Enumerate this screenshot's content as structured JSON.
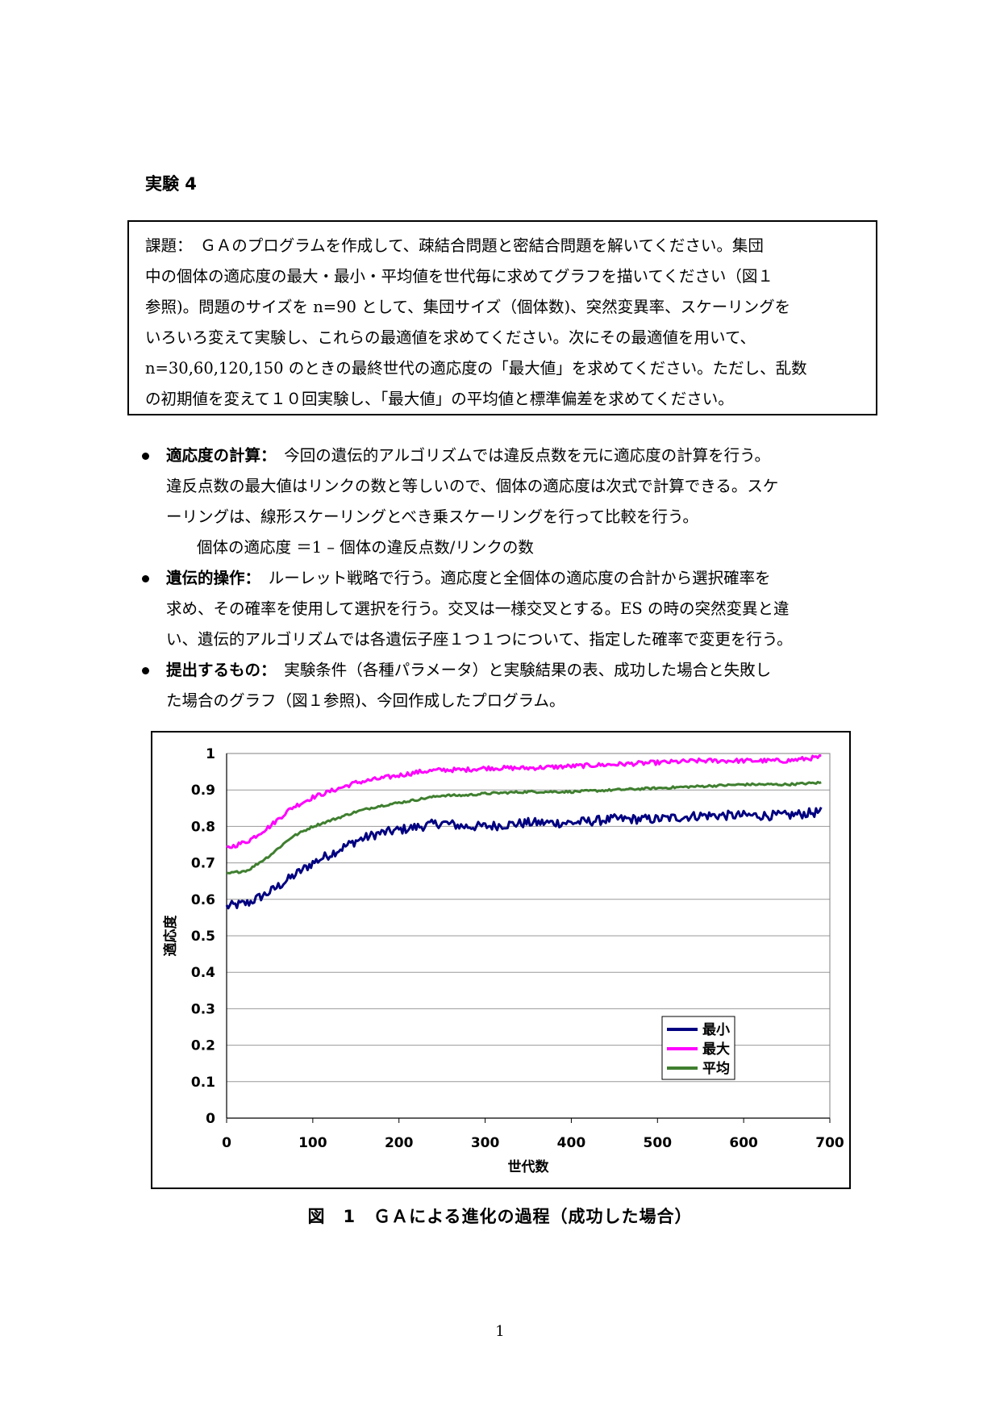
{
  "heading": "実験 4",
  "task_box": {
    "lines": [
      "課題：　ＧＡのプログラムを作成して、疎結合問題と密結合問題を解いてください。集団",
      "中の個体の適応度の最大・最小・平均値を世代毎に求めてグラフを描いてください（図１",
      "参照)。問題のサイズを n=90 として、集団サイズ（個体数)、突然変異率、スケーリングを",
      "いろいろ変えて実験し、これらの最適値を求めてください。次にその最適値を用いて、",
      "n=30,60,120,150 のときの最終世代の適応度の「最大値」を求めてください。ただし、乱数",
      "の初期値を変えて１０回実験し、「最大値」の平均値と標準偏差を求めてください。"
    ]
  },
  "bullets": [
    {
      "term": "適応度の計算：",
      "first": "　今回の遺伝的アルゴリズムでは違反点数を元に適応度の計算を行う。",
      "rest": [
        "違反点数の最大値はリンクの数と等しいので、個体の適応度は次式で計算できる。スケ",
        "ーリングは、線形スケーリングとべき乗スケーリングを行って比較を行う。"
      ],
      "formula": "個体の適応度 ＝1 – 個体の違反点数/リンクの数"
    },
    {
      "term": "遺伝的操作：",
      "first": "　ルーレット戦略で行う。適応度と全個体の適応度の合計から選択確率を",
      "rest": [
        "求め、その確率を使用して選択を行う。交叉は一様交叉とする。ES の時の突然変異と違",
        "い、遺伝的アルゴリズムでは各遺伝子座１つ１つについて、指定した確率で変更を行う。"
      ]
    },
    {
      "term": "提出するもの：",
      "first": "　実験条件（各種パラメータ）と実験結果の表、成功した場合と失敗し",
      "rest": [
        "た場合のグラフ（図１参照)、今回作成したプログラム。"
      ]
    }
  ],
  "chart_data": {
    "type": "line",
    "title": "",
    "xlabel": "世代数",
    "ylabel": "適応度",
    "xlim": [
      0,
      700
    ],
    "ylim": [
      0,
      1
    ],
    "x_ticks": [
      "0",
      "100",
      "200",
      "300",
      "400",
      "500",
      "600",
      "700"
    ],
    "y_ticks": [
      "0",
      "0.1",
      "0.2",
      "0.3",
      "0.4",
      "0.5",
      "0.6",
      "0.7",
      "0.8",
      "0.9",
      "1"
    ],
    "grid": "horizontal",
    "legend_position": "bottom-right",
    "x": [
      0,
      25,
      50,
      75,
      100,
      125,
      150,
      175,
      200,
      225,
      250,
      275,
      300,
      350,
      400,
      450,
      500,
      550,
      600,
      650,
      690
    ],
    "series": [
      {
        "name": "最小",
        "color": "#000080",
        "values": [
          0.58,
          0.59,
          0.62,
          0.66,
          0.7,
          0.73,
          0.76,
          0.78,
          0.79,
          0.8,
          0.81,
          0.8,
          0.8,
          0.81,
          0.81,
          0.82,
          0.82,
          0.83,
          0.83,
          0.83,
          0.84
        ]
      },
      {
        "name": "最大",
        "color": "#ff00ff",
        "values": [
          0.74,
          0.76,
          0.8,
          0.85,
          0.88,
          0.9,
          0.92,
          0.93,
          0.94,
          0.95,
          0.955,
          0.955,
          0.96,
          0.96,
          0.965,
          0.97,
          0.975,
          0.98,
          0.98,
          0.98,
          0.99
        ]
      },
      {
        "name": "平均",
        "color": "#3f7f2f",
        "values": [
          0.67,
          0.68,
          0.72,
          0.77,
          0.8,
          0.82,
          0.84,
          0.855,
          0.865,
          0.875,
          0.885,
          0.885,
          0.89,
          0.895,
          0.895,
          0.9,
          0.905,
          0.91,
          0.915,
          0.915,
          0.92
        ]
      }
    ]
  },
  "caption": "図　1　ＧＡによる進化の過程（成功した場合）",
  "page_number": "1"
}
